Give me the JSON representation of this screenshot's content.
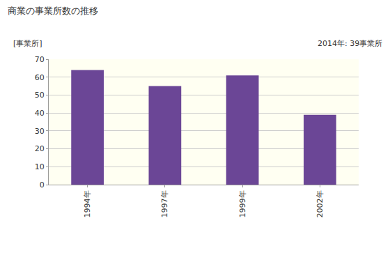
{
  "chart_data": {
    "type": "bar",
    "title": "商業の事業所数の推移",
    "y_label": "[事業所]",
    "annotations": [
      "2014年: 39事業所"
    ],
    "categories": [
      "1994年",
      "1997年",
      "1999年",
      "2002年"
    ],
    "values": [
      64,
      55,
      61,
      39
    ],
    "color": "#6b4696",
    "ylim": [
      0,
      70
    ],
    "yticks": [
      0,
      10,
      20,
      30,
      40,
      50,
      60,
      70
    ],
    "grid": true
  }
}
